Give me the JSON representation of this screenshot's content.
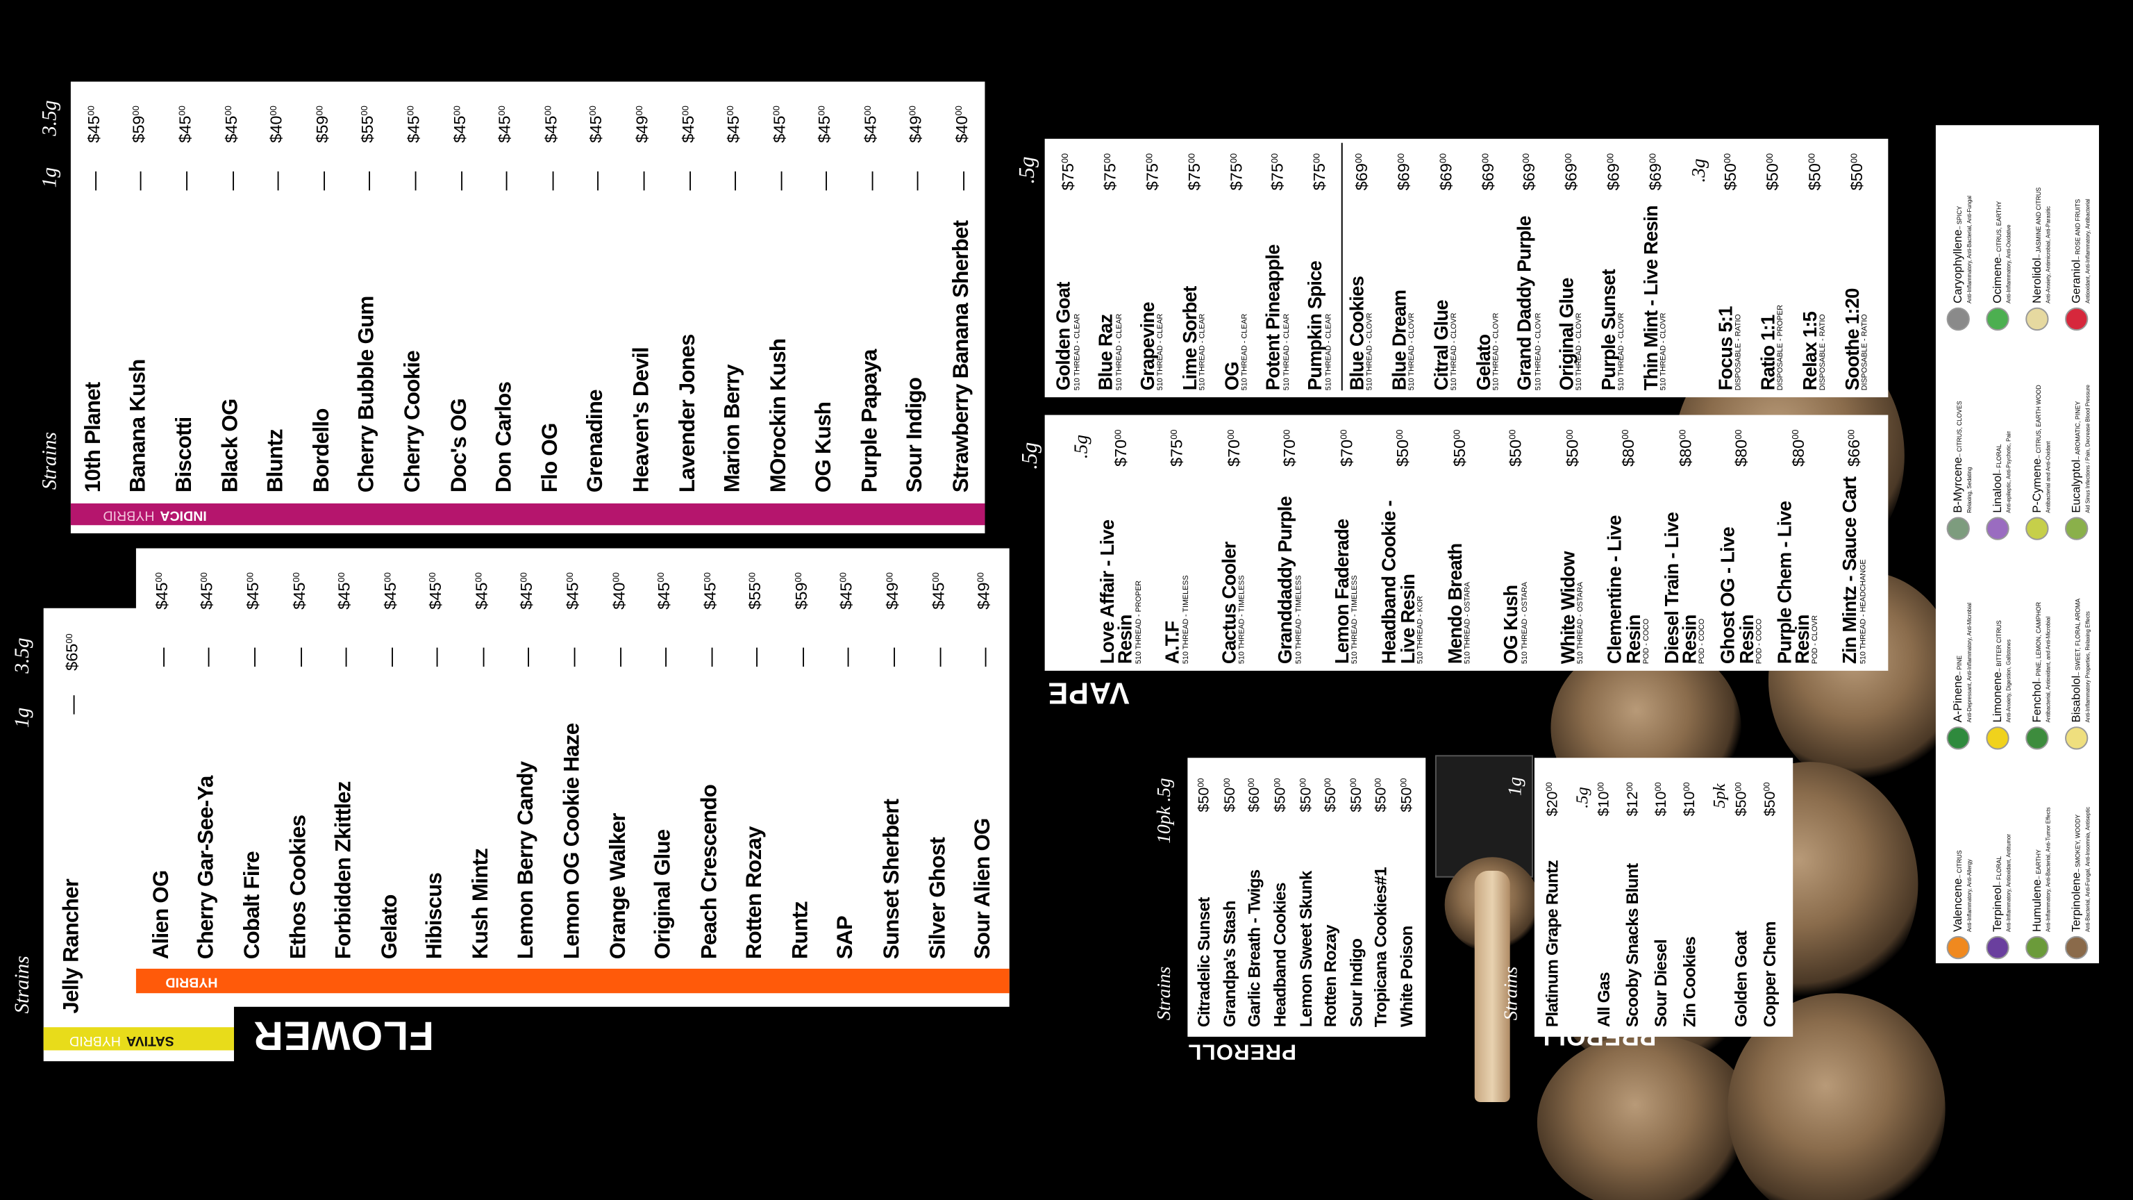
{
  "flower": {
    "heading": "FLOWER",
    "indica": {
      "tags": [
        "INDICA",
        "HYBRID"
      ],
      "headers": [
        "Strains",
        "1g",
        "3.5g"
      ],
      "items": [
        {
          "name": "10th Planet",
          "one_g": "—",
          "price": "$4500"
        },
        {
          "name": "Banana Kush",
          "one_g": "—",
          "price": "$5900"
        },
        {
          "name": "Biscotti",
          "one_g": "—",
          "price": "$4500"
        },
        {
          "name": "Black OG",
          "one_g": "—",
          "price": "$4500"
        },
        {
          "name": "Bluntz",
          "one_g": "—",
          "price": "$4000"
        },
        {
          "name": "Bordello",
          "one_g": "—",
          "price": "$5900"
        },
        {
          "name": "Cherry Bubble Gum",
          "one_g": "—",
          "price": "$5500"
        },
        {
          "name": "Cherry Cookie",
          "one_g": "—",
          "price": "$4500"
        },
        {
          "name": "Doc's OG",
          "one_g": "—",
          "price": "$4500"
        },
        {
          "name": "Don Carlos",
          "one_g": "—",
          "price": "$4500"
        },
        {
          "name": "Flo OG",
          "one_g": "—",
          "price": "$4500"
        },
        {
          "name": "Grenadine",
          "one_g": "—",
          "price": "$4500"
        },
        {
          "name": "Heaven's Devil",
          "one_g": "—",
          "price": "$4900"
        },
        {
          "name": "Lavender Jones",
          "one_g": "—",
          "price": "$4500"
        },
        {
          "name": "Marion Berry",
          "one_g": "—",
          "price": "$4500"
        },
        {
          "name": "MOrockin Kush",
          "one_g": "—",
          "price": "$4500"
        },
        {
          "name": "OG Kush",
          "one_g": "—",
          "price": "$4500"
        },
        {
          "name": "Purple Papaya",
          "one_g": "—",
          "price": "$4500"
        },
        {
          "name": "Sour Indigo",
          "one_g": "—",
          "price": "$4900"
        },
        {
          "name": "Strawberry Banana Sherbet",
          "one_g": "—",
          "price": "$4000"
        }
      ]
    },
    "sativa": {
      "tags": [
        "SATIVA",
        "HYBRID"
      ],
      "headers": [
        "Strains",
        "1g",
        "3.5g"
      ],
      "items": [
        {
          "name": "Jelly Rancher",
          "one_g": "—",
          "price": "$6500"
        }
      ]
    },
    "hybrid": {
      "tag": "HYBRID",
      "items": [
        {
          "name": "Alien OG",
          "one_g": "—",
          "price": "$4500"
        },
        {
          "name": "Cherry Gar-See-Ya",
          "one_g": "—",
          "price": "$4500"
        },
        {
          "name": "Cobalt Fire",
          "one_g": "—",
          "price": "$4500"
        },
        {
          "name": "Ethos Cookies",
          "one_g": "—",
          "price": "$4500"
        },
        {
          "name": "Forbidden Zkittlez",
          "one_g": "—",
          "price": "$4500"
        },
        {
          "name": "Gelato",
          "one_g": "—",
          "price": "$4500"
        },
        {
          "name": "Hibiscus",
          "one_g": "—",
          "price": "$4500"
        },
        {
          "name": "Kush Mintz",
          "one_g": "—",
          "price": "$4500"
        },
        {
          "name": "Lemon Berry Candy",
          "one_g": "—",
          "price": "$4500"
        },
        {
          "name": "Lemon OG Cookie Haze",
          "one_g": "—",
          "price": "$4500"
        },
        {
          "name": "Orange Walker",
          "one_g": "—",
          "price": "$4000"
        },
        {
          "name": "Original Glue",
          "one_g": "—",
          "price": "$4500"
        },
        {
          "name": "Peach Crescendo",
          "one_g": "—",
          "price": "$4500"
        },
        {
          "name": "Rotten Rozay",
          "one_g": "—",
          "price": "$5500"
        },
        {
          "name": "Runtz",
          "one_g": "—",
          "price": "$5900"
        },
        {
          "name": "SAP",
          "one_g": "—",
          "price": "$4500"
        },
        {
          "name": "Sunset Sherbert",
          "one_g": "—",
          "price": "$4900"
        },
        {
          "name": "Silver Ghost",
          "one_g": "—",
          "price": "$4500"
        },
        {
          "name": "Sour Alien OG",
          "one_g": "—",
          "price": "$4900"
        }
      ]
    }
  },
  "vape": {
    "heading": "VAPE",
    "upper": {
      "header": ".5g",
      "groups": [
        {
          "items": [
            {
              "name": "Golden Goat",
              "sub": "510 THREAD - CLEAR",
              "price": "$7500"
            },
            {
              "name": "Blue Raz",
              "sub": "510 THREAD - CLEAR",
              "price": "$7500"
            },
            {
              "name": "Grapevine",
              "sub": "510 THREAD - CLEAR",
              "price": "$7500"
            },
            {
              "name": "Lime Sorbet",
              "sub": "510 THREAD - CLEAR",
              "price": "$7500"
            },
            {
              "name": "OG",
              "sub": "510 THREAD - CLEAR",
              "price": "$7500"
            },
            {
              "name": "Potent Pineapple",
              "sub": "510 THREAD - CLEAR",
              "price": "$7500"
            },
            {
              "name": "Pumpkin Spice",
              "sub": "510 THREAD - CLEAR",
              "price": "$7500"
            }
          ]
        },
        {
          "items": [
            {
              "name": "Blue Cookies",
              "sub": "510 THREAD - CLOVR",
              "price": "$6900"
            },
            {
              "name": "Blue Dream",
              "sub": "510 THREAD - CLOVR",
              "price": "$6900"
            },
            {
              "name": "Citral Glue",
              "sub": "510 THREAD - CLOVR",
              "price": "$6900"
            },
            {
              "name": "Gelato",
              "sub": "510 THREAD - CLOVR",
              "price": "$6900"
            },
            {
              "name": "Grand Daddy Purple",
              "sub": "510 THREAD - CLOVR",
              "price": "$6900"
            },
            {
              "name": "Original Glue",
              "sub": "510 THREAD - CLOVR",
              "price": "$6900"
            },
            {
              "name": "Purple Sunset",
              "sub": "510 THREAD - CLOVR",
              "price": "$6900"
            },
            {
              "name": "Thin Mint - Live Resin",
              "sub": "510 THREAD - CLOVR",
              "price": "$6900"
            }
          ]
        },
        {
          "header": ".3g",
          "items": [
            {
              "name": "Focus 5:1",
              "sub": "DISPOSABLE - RATIO",
              "price": "$5000"
            },
            {
              "name": "Ratio 1:1",
              "sub": "DISPOSABLE - PROPER",
              "price": "$5000"
            },
            {
              "name": "Relax 1:5",
              "sub": "DISPOSABLE - RATIO",
              "price": "$5000"
            },
            {
              "name": "Soothe 1:20",
              "sub": "DISPOSABLE - RATIO",
              "price": "$5000"
            }
          ]
        }
      ]
    },
    "lower": {
      "header": ".5g",
      "items": [
        {
          "name": "Love Affair - Live Resin",
          "sub": "510 THREAD - PROPER",
          "price": "$7000"
        },
        {
          "name": "A.T.F",
          "sub": "510 THREAD - TIMELESS",
          "price": "$7500"
        },
        {
          "name": "Cactus Cooler",
          "sub": "510 THREAD - TIMELESS",
          "price": "$7000"
        },
        {
          "name": "Granddaddy Purple",
          "sub": "510 THREAD - TIMELESS",
          "price": "$7000"
        },
        {
          "name": "Lemon Faderade",
          "sub": "510 THREAD - TIMELESS",
          "price": "$7000"
        },
        {
          "name": "Headband Cookie - Live Resin",
          "sub": "510 THREAD - KOR",
          "price": "$5000"
        },
        {
          "name": "Mendo Breath",
          "sub": "510 THREAD - OSTARA",
          "price": "$5000"
        },
        {
          "name": "OG Kush",
          "sub": "510 THREAD - OSTARA",
          "price": "$5000"
        },
        {
          "name": "White Widow",
          "sub": "510 THREAD - OSTARA",
          "price": "$5000"
        },
        {
          "name": "Clementine - Live Resin",
          "sub": "POD - COCO",
          "price": "$8000"
        },
        {
          "name": "Diesel Train - Live Resin",
          "sub": "POD - COCO",
          "price": "$8000"
        },
        {
          "name": "Ghost OG - Live Resin",
          "sub": "POD - COCO",
          "price": "$8000"
        },
        {
          "name": "Purple Chem - Live Resin",
          "sub": "POD - CLOVR",
          "price": "$8000"
        },
        {
          "name": "Zin Mintz - Sauce Cart",
          "sub": "510 THREAD - HEADCHANGE",
          "price": "$6600"
        }
      ]
    }
  },
  "preroll_packs": {
    "heading": "PREROLL",
    "headers": [
      "Strains",
      "10pk .5g"
    ],
    "items": [
      {
        "name": "Citradelic Sunset",
        "price": "$5000"
      },
      {
        "name": "Grandpa's Stash",
        "price": "$5000"
      },
      {
        "name": "Garlic Breath - Twigs",
        "price": "$6000"
      },
      {
        "name": "Headband Cookies",
        "price": "$5000"
      },
      {
        "name": "Lemon Sweet Skunk",
        "price": "$5000"
      },
      {
        "name": "Rotten Rozay",
        "price": "$5000"
      },
      {
        "name": "Sour Indigo",
        "price": "$5000"
      },
      {
        "name": "Tropicana Cookies#1",
        "price": "$5000"
      },
      {
        "name": "White Poison",
        "price": "$5000"
      }
    ]
  },
  "preroll_singles": {
    "heading": "PREROLL",
    "headers": [
      "Strains",
      "1g"
    ],
    "groups": [
      {
        "items": [
          {
            "name": "Platinum Grape Runtz",
            "price": "$2000"
          }
        ]
      },
      {
        "header": ".5g",
        "items": [
          {
            "name": "All Gas",
            "price": "$1000"
          },
          {
            "name": "Scooby Snacks Blunt",
            "price": "$1200"
          },
          {
            "name": "Sour Diesel",
            "price": "$1000"
          },
          {
            "name": "Zin Cookies",
            "price": "$1000"
          }
        ]
      },
      {
        "header": "5pk",
        "items": [
          {
            "name": "Golden Goat",
            "price": "$5000"
          },
          {
            "name": "Copper Chem",
            "price": "$5000"
          }
        ]
      }
    ]
  },
  "terpenes": {
    "rows": [
      [
        {
          "name": "Valencene",
          "aroma": "– CITRUS",
          "effects": "Anti-Inflammatory, Anti-Allergy",
          "color": "#f0891f"
        },
        {
          "name": "A-Pinene",
          "aroma": "– PINE",
          "effects": "Anti-Depressant, Anti-Inflammatory, Anti-Microbial",
          "color": "#2f8a3d"
        },
        {
          "name": "B-Myrcene",
          "aroma": "– CITRUS, CLOVES",
          "effects": "Relaxing, Sedating",
          "color": "#7d9c7e"
        },
        {
          "name": "Caryophyllene",
          "aroma": "– SPICY",
          "effects": "Anti-Inflammatory, Anti-Bacterial, Anti-Fungal",
          "color": "#8a8a8a"
        }
      ],
      [
        {
          "name": "Terpineol",
          "aroma": "– FLORAL",
          "effects": "Anti-Inflammatory, Antioxidant, Antitumor",
          "color": "#6a3f9e"
        },
        {
          "name": "Limonene",
          "aroma": "– BITTER CITRUS",
          "effects": "Anti-Anxiety, Digestion, Gallstones",
          "color": "#f0d21c"
        },
        {
          "name": "Linalool",
          "aroma": "– FLORAL",
          "effects": "Anti-epileptic, Anti-Psychotic, Pain",
          "color": "#9a6cc0"
        },
        {
          "name": "Ocimene",
          "aroma": "– CITRUS, EARTHY",
          "effects": "Anti-Inflammatory, Anti-Oxidative",
          "color": "#4caf50"
        }
      ],
      [
        {
          "name": "Humulene",
          "aroma": "– EARTHY",
          "effects": "Anti-Inflammatory, Anti-Bacterial, Anti-Tumor Effects",
          "color": "#6b9b3a"
        },
        {
          "name": "Fenchol",
          "aroma": "– PINE, LEMON, CAMPHOR",
          "effects": "Antibacterial, Antioxidant, and Anti-Microbial",
          "color": "#3d8c3d"
        },
        {
          "name": "P-Cymene",
          "aroma": "– CITRUS, EARTH WOOD",
          "effects": "Antibacterial and Anti-Oxidant",
          "color": "#c6cf4a"
        },
        {
          "name": "Nerolidol",
          "aroma": "– JASMINE AND CITRUS",
          "effects": "Anti-Anxiety, Antimicrobial, Anti-Parasitic",
          "color": "#e6d9a0"
        }
      ],
      [
        {
          "name": "Terpinolene",
          "aroma": "– SMOKEY, WOODY",
          "effects": "Anti-Bacterial, Anti-Fungal, Anti-Insomnia, Antiseptic",
          "color": "#8a6a4a"
        },
        {
          "name": "Bisabolol",
          "aroma": "– SWEET, FLORAL AROMA",
          "effects": "Anti-Inflammatory Properties, Relaxing Effects",
          "color": "#efdf7e"
        },
        {
          "name": "Eucalyptol",
          "aroma": "– AROMATIC, PINEY",
          "effects": "Aid Sinus Infections / Pain, Decrease Blood Pressure",
          "color": "#8ab04a"
        },
        {
          "name": "Geraniol",
          "aroma": "– ROSE AND FRUITS",
          "effects": "Antioxidant, Anti-Inflammatory, Antibacterial",
          "color": "#d6283c"
        }
      ]
    ]
  }
}
